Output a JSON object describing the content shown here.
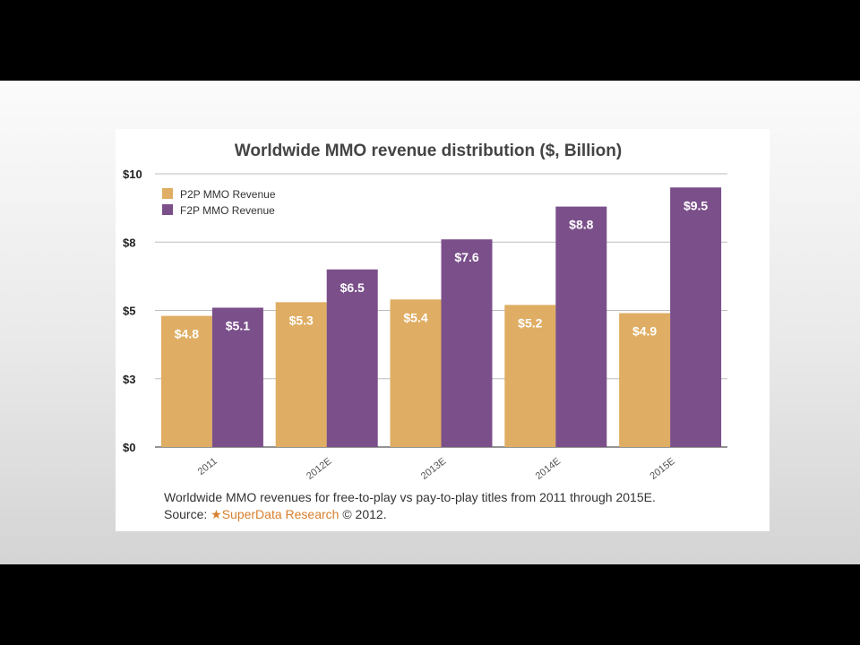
{
  "chart_data": {
    "type": "bar",
    "title": "Worldwide MMO revenue distribution ($, Billion)",
    "categories": [
      "2011",
      "2012E",
      "2013E",
      "2014E",
      "2015E"
    ],
    "series": [
      {
        "name": "P2P MMO Revenue",
        "values": [
          4.8,
          5.3,
          5.4,
          5.2,
          4.9
        ],
        "labels": [
          "$4.8",
          "$5.3",
          "$5.4",
          "$5.2",
          "$4.9"
        ],
        "color": "#dfad63"
      },
      {
        "name": "F2P MMO Revenue",
        "values": [
          5.1,
          6.5,
          7.6,
          8.8,
          9.5
        ],
        "labels": [
          "$5.1",
          "$6.5",
          "$7.6",
          "$8.8",
          "$9.5"
        ],
        "color": "#7b4f8a"
      }
    ],
    "y_ticks": [
      {
        "value": 0,
        "label": "$0"
      },
      {
        "value": 2.5,
        "label": "$3"
      },
      {
        "value": 5,
        "label": "$5"
      },
      {
        "value": 7.5,
        "label": "$8"
      },
      {
        "value": 10,
        "label": "$10"
      }
    ],
    "ylim": [
      0,
      10
    ],
    "grid": true,
    "legend_position": "top-left"
  },
  "caption": {
    "line1": "Worldwide MMO revenues for free-to-play vs pay-to-play titles from 2011 through 2015E.",
    "source_prefix": "Source: ",
    "star": "★",
    "brand": "SuperData Research",
    "suffix": " © 2012."
  },
  "colors": {
    "gridline": "#bdbdbd",
    "axis_text": "#222222",
    "bar_label": "#ffffff"
  }
}
